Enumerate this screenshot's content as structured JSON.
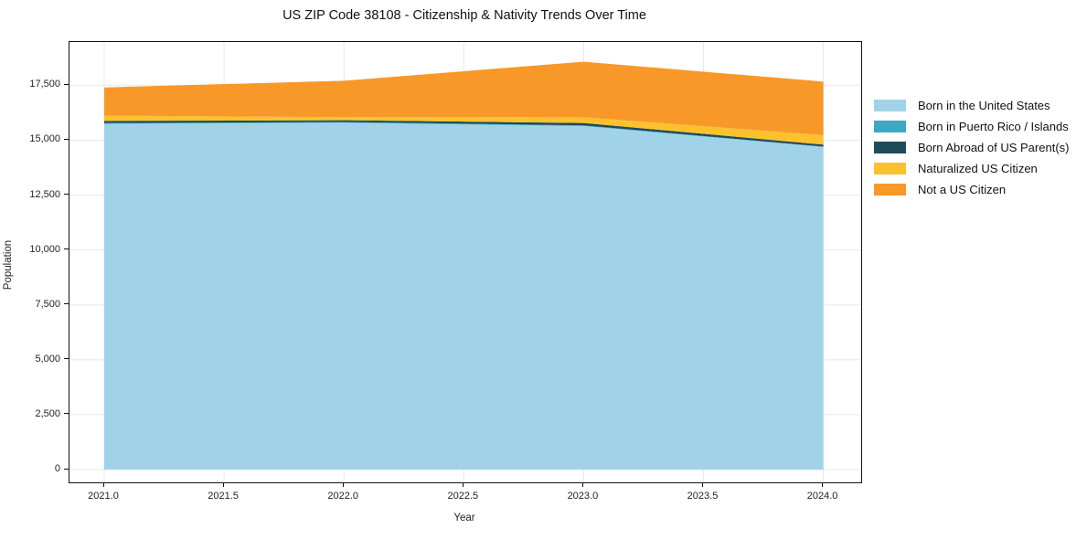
{
  "title": "US ZIP Code 38108 - Citizenship & Nativity Trends Over Time",
  "axes": {
    "xlabel": "Year",
    "ylabel": "Population",
    "xtick_values": [
      2021.0,
      2021.5,
      2022.0,
      2022.5,
      2023.0,
      2023.5,
      2024.0
    ],
    "xtick_labels": [
      "2021.0",
      "2021.5",
      "2022.0",
      "2022.5",
      "2023.0",
      "2023.5",
      "2024.0"
    ],
    "ytick_values": [
      0,
      2500,
      5000,
      7500,
      10000,
      12500,
      15000,
      17500
    ],
    "ytick_labels": [
      "0",
      "2,500",
      "5,000",
      "7,500",
      "10,000",
      "12,500",
      "15,000",
      "17,500"
    ]
  },
  "theme": {
    "background": "#ffffff",
    "grid_color": "#e8e8e8",
    "spine_color": "#111111",
    "text_color": "#1a1a1a"
  },
  "legend": {
    "position": "right",
    "frame": false
  },
  "chart_data": {
    "type": "area",
    "stacked": true,
    "title": "US ZIP Code 38108 - Citizenship & Nativity Trends Over Time",
    "xlabel": "Year",
    "ylabel": "Population",
    "x": [
      2021,
      2022,
      2023,
      2024
    ],
    "series": [
      {
        "name": "Born in the United States",
        "color": "#a1d3e8",
        "values": [
          15750,
          15800,
          15650,
          14690
        ]
      },
      {
        "name": "Born in Puerto Rico / Islands",
        "color": "#3fa7c2",
        "values": [
          30,
          30,
          25,
          20
        ]
      },
      {
        "name": "Born Abroad of US Parent(s)",
        "color": "#1f4a5c",
        "values": [
          100,
          80,
          110,
          90
        ]
      },
      {
        "name": "Naturalized US Citizen",
        "color": "#fcc22d",
        "values": [
          240,
          140,
          260,
          430
        ]
      },
      {
        "name": "Not a US Citizen",
        "color": "#f89829",
        "values": [
          1280,
          1660,
          2530,
          2440
        ]
      }
    ],
    "stacked_totals": [
      17400,
      17710,
      18575,
      17670
    ],
    "xlim": [
      2020.86,
      2024.15
    ],
    "ylim": [
      -580,
      19470
    ],
    "grid": true,
    "legend_position": "right"
  }
}
